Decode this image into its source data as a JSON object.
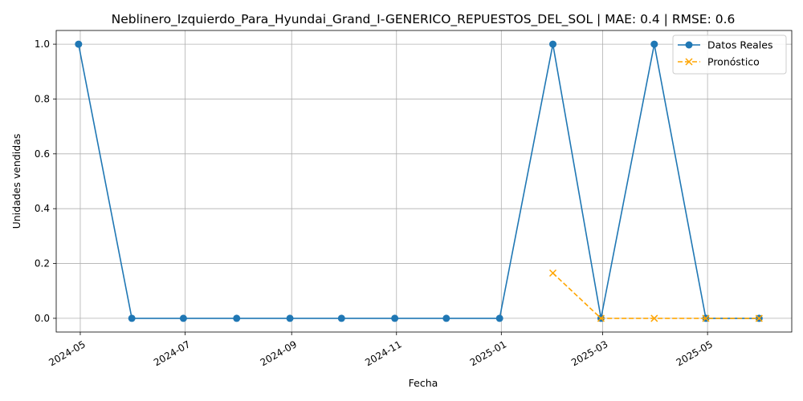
{
  "chart_data": {
    "type": "line",
    "title": "Neblinero_Izquierdo_Para_Hyundai_Grand_I-GENERICO_REPUESTOS_DEL_SOL | MAE: 0.4 | RMSE: 0.6",
    "xlabel": "Fecha",
    "ylabel": "Unidades vendidas",
    "x_ticks": [
      "2024-05",
      "2024-07",
      "2024-09",
      "2024-11",
      "2025-01",
      "2025-03",
      "2025-05"
    ],
    "y_ticks": [
      "0.0",
      "0.2",
      "0.4",
      "0.6",
      "0.8",
      "1.0"
    ],
    "xlim": [
      "2024-04-17",
      "2025-06-19"
    ],
    "ylim": [
      -0.05,
      1.05
    ],
    "grid": true,
    "legend_position": "top-right",
    "series": [
      {
        "name": "Datos Reales",
        "color": "#1f77b4",
        "marker": "circle",
        "line_style": "solid",
        "points": [
          {
            "x": "2024-04-30",
            "y": 1
          },
          {
            "x": "2024-05-31",
            "y": 0
          },
          {
            "x": "2024-06-30",
            "y": 0
          },
          {
            "x": "2024-07-31",
            "y": 0
          },
          {
            "x": "2024-08-31",
            "y": 0
          },
          {
            "x": "2024-09-30",
            "y": 0
          },
          {
            "x": "2024-10-31",
            "y": 0
          },
          {
            "x": "2024-11-30",
            "y": 0
          },
          {
            "x": "2024-12-31",
            "y": 0
          },
          {
            "x": "2025-01-31",
            "y": 1
          },
          {
            "x": "2025-02-28",
            "y": 0
          },
          {
            "x": "2025-03-31",
            "y": 1
          },
          {
            "x": "2025-04-30",
            "y": 0
          },
          {
            "x": "2025-05-31",
            "y": 0
          }
        ]
      },
      {
        "name": "Pronóstico",
        "color": "#ffa500",
        "marker": "x",
        "line_style": "dashed",
        "points": [
          {
            "x": "2025-01-31",
            "y": 0.165
          },
          {
            "x": "2025-02-28",
            "y": 0.0
          },
          {
            "x": "2025-03-31",
            "y": 0.0
          },
          {
            "x": "2025-04-30",
            "y": 0.0
          },
          {
            "x": "2025-05-31",
            "y": 0.0
          }
        ]
      }
    ]
  }
}
